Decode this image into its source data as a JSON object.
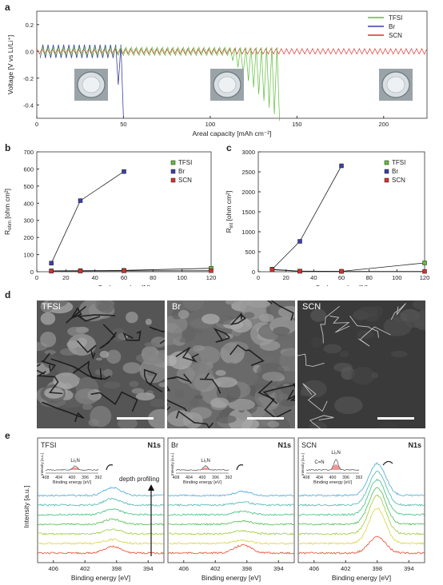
{
  "panels": {
    "a": "a",
    "b": "b",
    "c": "c",
    "d": "d",
    "e": "e"
  },
  "colors": {
    "TFSI": "#5cbf3a",
    "Br": "#3a3fa8",
    "SCN": "#d8302c"
  },
  "chart_data": [
    {
      "id": "a",
      "type": "line",
      "xlabel": "Areal capacity [mAh cm⁻²]",
      "ylabel": "Voltage [V vs Li/Li⁺]",
      "xlim": [
        0,
        225
      ],
      "ylim": [
        -0.5,
        0.3
      ],
      "xticks": [
        0,
        50,
        100,
        150,
        200
      ],
      "yticks": [
        0.2,
        0.0,
        -0.2,
        -0.4
      ],
      "xtick_labels": [
        "0",
        "50",
        "100",
        "150",
        "200"
      ],
      "ytick_labels": [
        "0.2",
        "0.0",
        "-0.2",
        "-0.4"
      ],
      "legend": [
        "TFSI",
        "Br",
        "SCN"
      ],
      "legend_position": "top-right",
      "series": [
        {
          "name": "TFSI",
          "x_range": [
            0,
            140
          ],
          "normal_amplitude": 0.03,
          "short_circuit_start": 110,
          "short_circuit_end": 140,
          "min_voltage": -0.5
        },
        {
          "name": "Br",
          "x_range": [
            0,
            50
          ],
          "normal_amplitude": 0.05,
          "short_circuit_start": 44,
          "short_circuit_end": 50,
          "min_voltage": -0.5
        },
        {
          "name": "SCN",
          "x_range": [
            0,
            225
          ],
          "normal_amplitude": 0.02
        }
      ]
    },
    {
      "id": "b",
      "type": "line",
      "xlabel": "Cycle number [N]",
      "ylabel": "R",
      "ylabel_sub": "ohm",
      "ylabel_unit": " [ohm cm²]",
      "xlim": [
        0,
        120
      ],
      "ylim": [
        0,
        700
      ],
      "xticks": [
        0,
        20,
        40,
        60,
        80,
        100,
        120
      ],
      "yticks": [
        0,
        100,
        200,
        300,
        400,
        500,
        600,
        700
      ],
      "legend": [
        "TFSI",
        "Br",
        "SCN"
      ],
      "legend_position": "top-right",
      "series": [
        {
          "name": "TFSI",
          "x": [
            10,
            30,
            60,
            120
          ],
          "y": [
            5,
            6,
            8,
            20
          ]
        },
        {
          "name": "Br",
          "x": [
            10,
            30,
            60
          ],
          "y": [
            50,
            415,
            585
          ]
        },
        {
          "name": "SCN",
          "x": [
            10,
            30,
            60,
            120
          ],
          "y": [
            3,
            4,
            5,
            6
          ]
        }
      ]
    },
    {
      "id": "c",
      "type": "line",
      "xlabel": "Cycle number [N]",
      "ylabel": "R",
      "ylabel_sub": "int",
      "ylabel_unit": " [ohm cm²]",
      "xlim": [
        0,
        120
      ],
      "ylim": [
        0,
        3000
      ],
      "xticks": [
        0,
        20,
        40,
        60,
        80,
        100,
        120
      ],
      "yticks": [
        0,
        500,
        1000,
        1500,
        2000,
        2500,
        3000
      ],
      "legend": [
        "TFSI",
        "Br",
        "SCN"
      ],
      "legend_position": "top-right",
      "series": [
        {
          "name": "TFSI",
          "x": [
            10,
            30,
            60,
            120
          ],
          "y": [
            60,
            15,
            10,
            220
          ]
        },
        {
          "name": "Br",
          "x": [
            10,
            30,
            60
          ],
          "y": [
            60,
            760,
            2650
          ]
        },
        {
          "name": "SCN",
          "x": [
            10,
            30,
            60,
            120
          ],
          "y": [
            50,
            10,
            8,
            8
          ]
        }
      ]
    },
    {
      "id": "e",
      "type": "line",
      "xlabel": "Binding energy [eV]",
      "ylabel": "Intensity [a.u.]",
      "xlim": [
        408,
        392
      ],
      "xticks": [
        406,
        402,
        398,
        394
      ],
      "subplots": [
        {
          "title": "TFSI",
          "label": "N1s",
          "peak_eV": 398.5,
          "peak_heights": [
            0.25,
            0.2,
            0.18,
            0.16,
            0.14,
            0.12,
            0.2
          ]
        },
        {
          "title": "Br",
          "label": "N1s",
          "peak_eV": 398.5,
          "peak_heights": [
            0.12,
            0.1,
            0.1,
            0.1,
            0.1,
            0.1,
            0.25
          ]
        },
        {
          "title": "SCN",
          "label": "N1s",
          "peak_eV": 398.0,
          "peak_heights": [
            1.0,
            1.05,
            1.1,
            1.15,
            1.2,
            1.1,
            0.5
          ]
        }
      ],
      "inset": {
        "xlabel": "Binding energy [eV]",
        "ylabel": "Intensity [a.u.]",
        "xticks": [
          408,
          404,
          400,
          396,
          392
        ],
        "peak_label": "Li₃N",
        "extra_label": "C=N"
      },
      "annotation": "depth profiling",
      "trace_colors": [
        "#4aa9d8",
        "#45b8b0",
        "#3fbf7f",
        "#4fbe50",
        "#9ccc3a",
        "#d8d43a",
        "#e84a2f"
      ]
    }
  ],
  "sem": [
    {
      "label": "TFSI"
    },
    {
      "label": "Br"
    },
    {
      "label": "SCN"
    }
  ]
}
